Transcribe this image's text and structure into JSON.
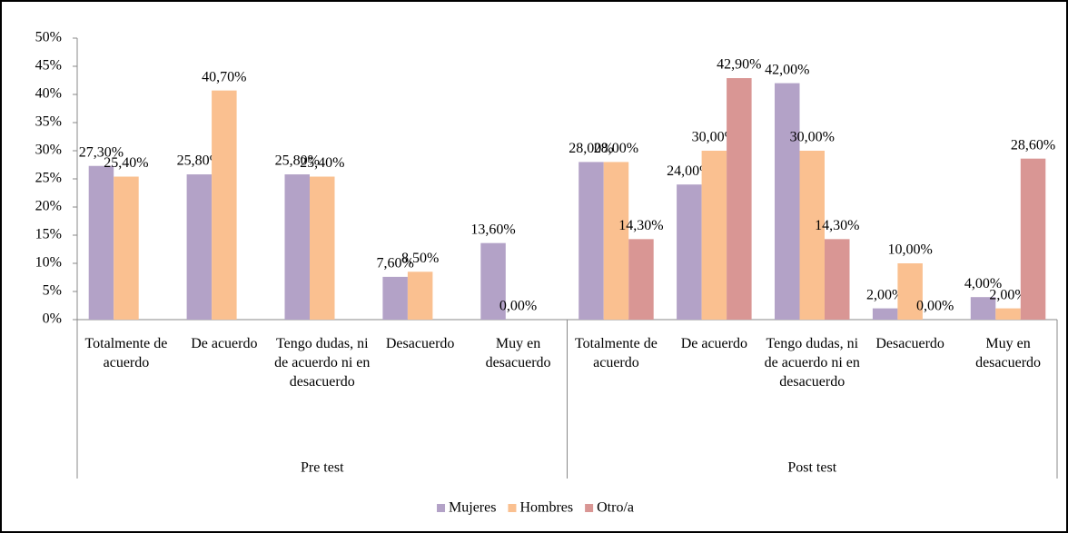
{
  "chart_data": {
    "type": "bar",
    "categories": [
      "Totalmente de acuerdo",
      "De acuerdo",
      "Tengo dudas, ni de acuerdo ni en desacuerdo",
      "Desacuerdo",
      "Muy en desacuerdo",
      "Totalmente de acuerdo",
      "De acuerdo",
      "Tengo dudas, ni de acuerdo ni en desacuerdo",
      "Desacuerdo",
      "Muy en desacuerdo"
    ],
    "group_labels": [
      "Pre test",
      "Post test"
    ],
    "series": [
      {
        "name": "Mujeres",
        "color": "#b3a2c7",
        "values": [
          27.3,
          25.8,
          25.8,
          7.6,
          13.6,
          28,
          24,
          42,
          2,
          4
        ],
        "value_labels": [
          "27,30%",
          "25,80%",
          "25,80%",
          "7,60%",
          "13,60%",
          "28,00%",
          "24,00%",
          "42,00%",
          "2,00%",
          "4,00%"
        ]
      },
      {
        "name": "Hombres",
        "color": "#fac090",
        "values": [
          25.4,
          40.7,
          25.4,
          8.5,
          0,
          28,
          30,
          30,
          10,
          2
        ],
        "value_labels": [
          "25,40%",
          "40,70%",
          "25,40%",
          "8,50%",
          "0,00%",
          "28,00%",
          "30,00%",
          "30,00%",
          "10,00%",
          "2,00%"
        ]
      },
      {
        "name": "Otro/a",
        "color": "#d99694",
        "values": [
          null,
          null,
          null,
          null,
          null,
          14.3,
          42.9,
          14.3,
          0,
          28.6
        ],
        "value_labels": [
          null,
          null,
          null,
          null,
          null,
          "14,30%",
          "42,90%",
          "14,30%",
          "0,00%",
          "28,60%"
        ]
      }
    ],
    "ylim": [
      0,
      50
    ],
    "yticks": [
      {
        "value": 0,
        "label": "0%"
      },
      {
        "value": 5,
        "label": "5%"
      },
      {
        "value": 10,
        "label": "10%"
      },
      {
        "value": 15,
        "label": "15%"
      },
      {
        "value": 20,
        "label": "20%"
      },
      {
        "value": 25,
        "label": "25%"
      },
      {
        "value": 30,
        "label": "30%"
      },
      {
        "value": 35,
        "label": "35%"
      },
      {
        "value": 40,
        "label": "40%"
      },
      {
        "value": 45,
        "label": "45%"
      },
      {
        "value": 50,
        "label": "50%"
      }
    ],
    "legend": "bottom"
  }
}
